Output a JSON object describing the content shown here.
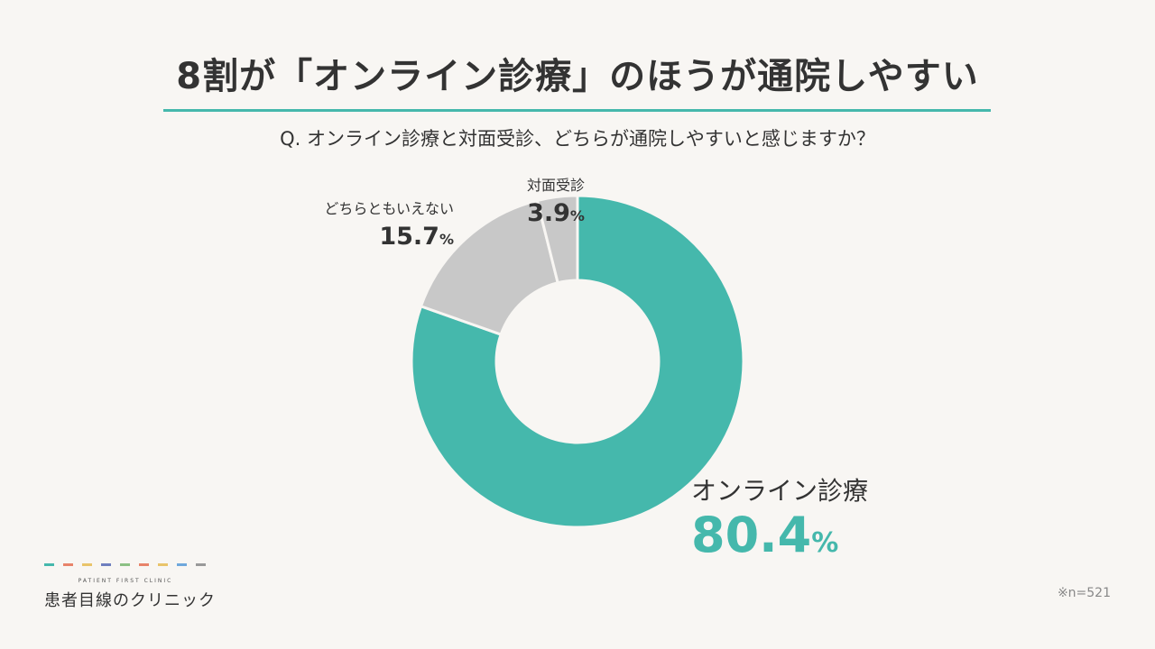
{
  "header": {
    "title": "8割が「オンライン診療」のほうが通院しやすい",
    "question": "Q. オンライン診療と対面受診、どちらが通院しやすいと感じますか？"
  },
  "chart_data": {
    "type": "pie",
    "categories": [
      "オンライン診療",
      "どちらともいえない",
      "対面受診"
    ],
    "values": [
      80.4,
      15.7,
      3.9
    ],
    "value_labels": [
      "80.4",
      "15.7",
      "3.9"
    ],
    "unit": "%",
    "colors": [
      "#45b8ac",
      "#c8c8c8",
      "#c8c8c8"
    ],
    "donut": true,
    "title": ""
  },
  "footer": {
    "logo_sub": "PATIENT FIRST CLINIC",
    "logo_main": "患者目線のクリニック",
    "logo_dash_colors": [
      "#45b8ac",
      "#e8836a",
      "#e9c46a",
      "#6f7fbf",
      "#8cc084",
      "#e8836a",
      "#e9c46a",
      "#6fa8dc",
      "#999999"
    ],
    "sample_size": "※n=521"
  },
  "colors": {
    "background": "#f8f6f3",
    "accent": "#45b8ac",
    "text": "#333333",
    "muted": "#c8c8c8"
  }
}
